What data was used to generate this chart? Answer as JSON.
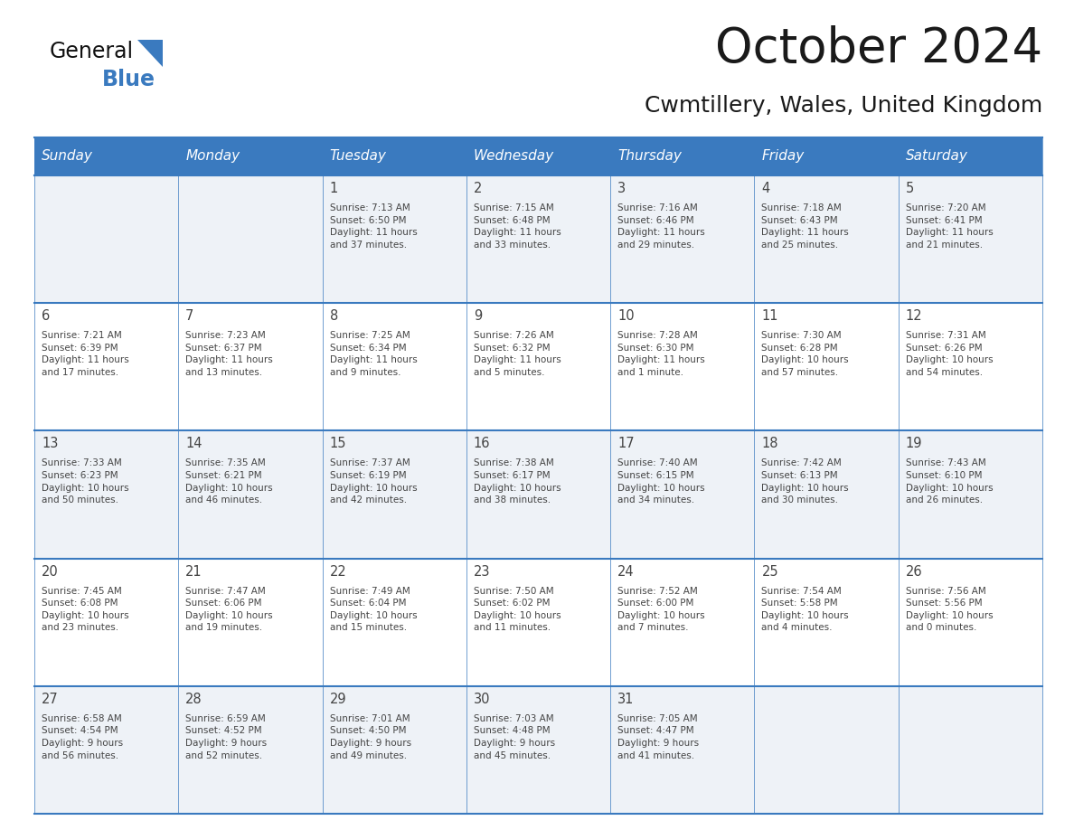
{
  "title": "October 2024",
  "subtitle": "Cwmtillery, Wales, United Kingdom",
  "header_bg_color": "#3a7abf",
  "header_text_color": "#ffffff",
  "days_of_week": [
    "Sunday",
    "Monday",
    "Tuesday",
    "Wednesday",
    "Thursday",
    "Friday",
    "Saturday"
  ],
  "row_bg_even": "#eef2f7",
  "row_bg_odd": "#ffffff",
  "cell_border_color": "#3a7abf",
  "text_color": "#444444",
  "title_color": "#1a1a1a",
  "subtitle_color": "#1a1a1a",
  "calendar_data": [
    [
      {
        "day": "",
        "info": ""
      },
      {
        "day": "",
        "info": ""
      },
      {
        "day": "1",
        "info": "Sunrise: 7:13 AM\nSunset: 6:50 PM\nDaylight: 11 hours\nand 37 minutes."
      },
      {
        "day": "2",
        "info": "Sunrise: 7:15 AM\nSunset: 6:48 PM\nDaylight: 11 hours\nand 33 minutes."
      },
      {
        "day": "3",
        "info": "Sunrise: 7:16 AM\nSunset: 6:46 PM\nDaylight: 11 hours\nand 29 minutes."
      },
      {
        "day": "4",
        "info": "Sunrise: 7:18 AM\nSunset: 6:43 PM\nDaylight: 11 hours\nand 25 minutes."
      },
      {
        "day": "5",
        "info": "Sunrise: 7:20 AM\nSunset: 6:41 PM\nDaylight: 11 hours\nand 21 minutes."
      }
    ],
    [
      {
        "day": "6",
        "info": "Sunrise: 7:21 AM\nSunset: 6:39 PM\nDaylight: 11 hours\nand 17 minutes."
      },
      {
        "day": "7",
        "info": "Sunrise: 7:23 AM\nSunset: 6:37 PM\nDaylight: 11 hours\nand 13 minutes."
      },
      {
        "day": "8",
        "info": "Sunrise: 7:25 AM\nSunset: 6:34 PM\nDaylight: 11 hours\nand 9 minutes."
      },
      {
        "day": "9",
        "info": "Sunrise: 7:26 AM\nSunset: 6:32 PM\nDaylight: 11 hours\nand 5 minutes."
      },
      {
        "day": "10",
        "info": "Sunrise: 7:28 AM\nSunset: 6:30 PM\nDaylight: 11 hours\nand 1 minute."
      },
      {
        "day": "11",
        "info": "Sunrise: 7:30 AM\nSunset: 6:28 PM\nDaylight: 10 hours\nand 57 minutes."
      },
      {
        "day": "12",
        "info": "Sunrise: 7:31 AM\nSunset: 6:26 PM\nDaylight: 10 hours\nand 54 minutes."
      }
    ],
    [
      {
        "day": "13",
        "info": "Sunrise: 7:33 AM\nSunset: 6:23 PM\nDaylight: 10 hours\nand 50 minutes."
      },
      {
        "day": "14",
        "info": "Sunrise: 7:35 AM\nSunset: 6:21 PM\nDaylight: 10 hours\nand 46 minutes."
      },
      {
        "day": "15",
        "info": "Sunrise: 7:37 AM\nSunset: 6:19 PM\nDaylight: 10 hours\nand 42 minutes."
      },
      {
        "day": "16",
        "info": "Sunrise: 7:38 AM\nSunset: 6:17 PM\nDaylight: 10 hours\nand 38 minutes."
      },
      {
        "day": "17",
        "info": "Sunrise: 7:40 AM\nSunset: 6:15 PM\nDaylight: 10 hours\nand 34 minutes."
      },
      {
        "day": "18",
        "info": "Sunrise: 7:42 AM\nSunset: 6:13 PM\nDaylight: 10 hours\nand 30 minutes."
      },
      {
        "day": "19",
        "info": "Sunrise: 7:43 AM\nSunset: 6:10 PM\nDaylight: 10 hours\nand 26 minutes."
      }
    ],
    [
      {
        "day": "20",
        "info": "Sunrise: 7:45 AM\nSunset: 6:08 PM\nDaylight: 10 hours\nand 23 minutes."
      },
      {
        "day": "21",
        "info": "Sunrise: 7:47 AM\nSunset: 6:06 PM\nDaylight: 10 hours\nand 19 minutes."
      },
      {
        "day": "22",
        "info": "Sunrise: 7:49 AM\nSunset: 6:04 PM\nDaylight: 10 hours\nand 15 minutes."
      },
      {
        "day": "23",
        "info": "Sunrise: 7:50 AM\nSunset: 6:02 PM\nDaylight: 10 hours\nand 11 minutes."
      },
      {
        "day": "24",
        "info": "Sunrise: 7:52 AM\nSunset: 6:00 PM\nDaylight: 10 hours\nand 7 minutes."
      },
      {
        "day": "25",
        "info": "Sunrise: 7:54 AM\nSunset: 5:58 PM\nDaylight: 10 hours\nand 4 minutes."
      },
      {
        "day": "26",
        "info": "Sunrise: 7:56 AM\nSunset: 5:56 PM\nDaylight: 10 hours\nand 0 minutes."
      }
    ],
    [
      {
        "day": "27",
        "info": "Sunrise: 6:58 AM\nSunset: 4:54 PM\nDaylight: 9 hours\nand 56 minutes."
      },
      {
        "day": "28",
        "info": "Sunrise: 6:59 AM\nSunset: 4:52 PM\nDaylight: 9 hours\nand 52 minutes."
      },
      {
        "day": "29",
        "info": "Sunrise: 7:01 AM\nSunset: 4:50 PM\nDaylight: 9 hours\nand 49 minutes."
      },
      {
        "day": "30",
        "info": "Sunrise: 7:03 AM\nSunset: 4:48 PM\nDaylight: 9 hours\nand 45 minutes."
      },
      {
        "day": "31",
        "info": "Sunrise: 7:05 AM\nSunset: 4:47 PM\nDaylight: 9 hours\nand 41 minutes."
      },
      {
        "day": "",
        "info": ""
      },
      {
        "day": "",
        "info": ""
      }
    ]
  ]
}
